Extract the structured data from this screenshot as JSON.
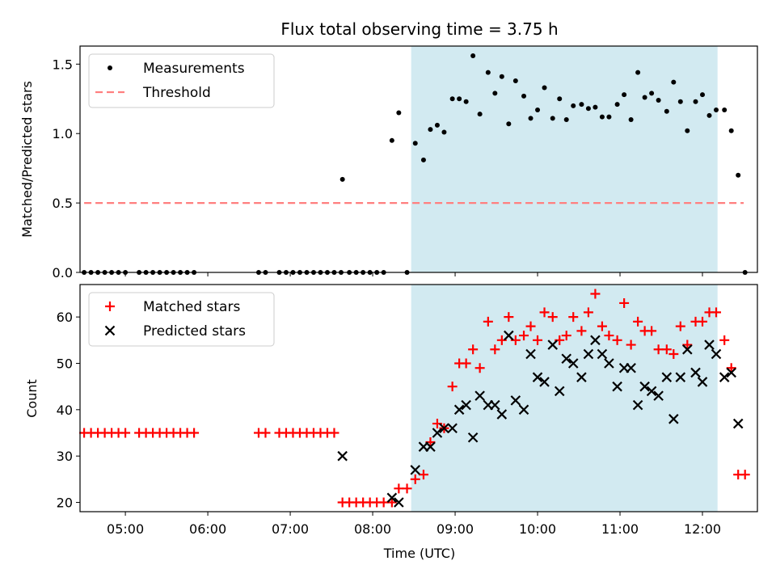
{
  "chart_data": [
    {
      "type": "scatter",
      "title": "Flux total observing time = 3.75 h",
      "ylabel": "Matched/Predicted stars",
      "xlabel": "",
      "xlim": [
        "04:27",
        "12:40"
      ],
      "ylim": [
        0,
        1.63
      ],
      "yticks": [
        "0.0",
        "0.5",
        "1.0",
        "1.5"
      ],
      "shaded_interval": [
        "08:28",
        "12:11"
      ],
      "shaded_color": "#add8e6",
      "legend": {
        "placement": "top-left",
        "entries": [
          "Measurements",
          "Threshold"
        ]
      },
      "series": [
        {
          "name": "Measurements",
          "color": "#000000",
          "marker": "dot",
          "points": [
            [
              "04:30",
              0
            ],
            [
              "04:35",
              0
            ],
            [
              "04:40",
              0
            ],
            [
              "04:45",
              0
            ],
            [
              "04:50",
              0
            ],
            [
              "04:55",
              0
            ],
            [
              "05:00",
              0
            ],
            [
              "05:10",
              0
            ],
            [
              "05:15",
              0
            ],
            [
              "05:20",
              0
            ],
            [
              "05:25",
              0
            ],
            [
              "05:30",
              0
            ],
            [
              "05:35",
              0
            ],
            [
              "05:40",
              0
            ],
            [
              "05:45",
              0
            ],
            [
              "05:50",
              0
            ],
            [
              "06:37",
              0
            ],
            [
              "06:42",
              0
            ],
            [
              "06:52",
              0
            ],
            [
              "06:57",
              0
            ],
            [
              "07:02",
              0
            ],
            [
              "07:07",
              0
            ],
            [
              "07:12",
              0
            ],
            [
              "07:17",
              0
            ],
            [
              "07:22",
              0
            ],
            [
              "07:27",
              0
            ],
            [
              "07:32",
              0
            ],
            [
              "07:37",
              0
            ],
            [
              "07:38",
              0.67
            ],
            [
              "07:43",
              0
            ],
            [
              "07:48",
              0
            ],
            [
              "07:53",
              0
            ],
            [
              "07:58",
              0
            ],
            [
              "08:03",
              0
            ],
            [
              "08:08",
              0
            ],
            [
              "08:14",
              0.95
            ],
            [
              "08:19",
              1.15
            ],
            [
              "08:25",
              0
            ],
            [
              "08:31",
              0.93
            ],
            [
              "08:37",
              0.81
            ],
            [
              "08:42",
              1.03
            ],
            [
              "08:47",
              1.06
            ],
            [
              "08:52",
              1.01
            ],
            [
              "08:58",
              1.25
            ],
            [
              "09:03",
              1.25
            ],
            [
              "09:08",
              1.23
            ],
            [
              "09:13",
              1.56
            ],
            [
              "09:18",
              1.14
            ],
            [
              "09:24",
              1.44
            ],
            [
              "09:29",
              1.29
            ],
            [
              "09:34",
              1.41
            ],
            [
              "09:39",
              1.07
            ],
            [
              "09:44",
              1.38
            ],
            [
              "09:50",
              1.27
            ],
            [
              "09:55",
              1.11
            ],
            [
              "10:00",
              1.17
            ],
            [
              "10:05",
              1.33
            ],
            [
              "10:11",
              1.11
            ],
            [
              "10:16",
              1.25
            ],
            [
              "10:21",
              1.1
            ],
            [
              "10:26",
              1.2
            ],
            [
              "10:32",
              1.21
            ],
            [
              "10:37",
              1.18
            ],
            [
              "10:42",
              1.19
            ],
            [
              "10:47",
              1.12
            ],
            [
              "10:52",
              1.12
            ],
            [
              "10:58",
              1.21
            ],
            [
              "11:03",
              1.28
            ],
            [
              "11:08",
              1.1
            ],
            [
              "11:13",
              1.44
            ],
            [
              "11:18",
              1.26
            ],
            [
              "11:23",
              1.29
            ],
            [
              "11:28",
              1.24
            ],
            [
              "11:34",
              1.16
            ],
            [
              "11:39",
              1.37
            ],
            [
              "11:44",
              1.23
            ],
            [
              "11:49",
              1.02
            ],
            [
              "11:55",
              1.23
            ],
            [
              "12:00",
              1.28
            ],
            [
              "12:05",
              1.13
            ],
            [
              "12:10",
              1.17
            ],
            [
              "12:16",
              1.17
            ],
            [
              "12:21",
              1.02
            ],
            [
              "12:26",
              0.7
            ],
            [
              "12:31",
              0
            ]
          ]
        },
        {
          "name": "Threshold",
          "color": "#ff7f7f",
          "style": "dashed",
          "points": [
            [
              "04:30",
              0.5
            ],
            [
              "12:30",
              0.5
            ]
          ]
        }
      ]
    },
    {
      "type": "scatter",
      "title": "",
      "ylabel": "Count",
      "xlabel": "Time (UTC)",
      "xlim": [
        "04:27",
        "12:40"
      ],
      "ylim": [
        18,
        67
      ],
      "yticks": [
        "20",
        "30",
        "40",
        "50",
        "60"
      ],
      "xticks": [
        "05:00",
        "06:00",
        "07:00",
        "08:00",
        "09:00",
        "10:00",
        "11:00",
        "12:00"
      ],
      "shaded_interval": [
        "08:28",
        "12:11"
      ],
      "shaded_color": "#add8e6",
      "legend": {
        "placement": "top-left",
        "entries": [
          "Matched stars",
          "Predicted stars"
        ]
      },
      "series": [
        {
          "name": "Matched stars",
          "color": "#ff0000",
          "marker": "plus",
          "points": [
            [
              "04:30",
              35
            ],
            [
              "04:35",
              35
            ],
            [
              "04:40",
              35
            ],
            [
              "04:45",
              35
            ],
            [
              "04:50",
              35
            ],
            [
              "04:55",
              35
            ],
            [
              "05:00",
              35
            ],
            [
              "05:10",
              35
            ],
            [
              "05:15",
              35
            ],
            [
              "05:20",
              35
            ],
            [
              "05:25",
              35
            ],
            [
              "05:30",
              35
            ],
            [
              "05:35",
              35
            ],
            [
              "05:40",
              35
            ],
            [
              "05:45",
              35
            ],
            [
              "05:50",
              35
            ],
            [
              "06:37",
              35
            ],
            [
              "06:42",
              35
            ],
            [
              "06:52",
              35
            ],
            [
              "06:57",
              35
            ],
            [
              "07:02",
              35
            ],
            [
              "07:07",
              35
            ],
            [
              "07:12",
              35
            ],
            [
              "07:17",
              35
            ],
            [
              "07:22",
              35
            ],
            [
              "07:27",
              35
            ],
            [
              "07:32",
              35
            ],
            [
              "07:38",
              20
            ],
            [
              "07:43",
              20
            ],
            [
              "07:48",
              20
            ],
            [
              "07:53",
              20
            ],
            [
              "07:58",
              20
            ],
            [
              "08:03",
              20
            ],
            [
              "08:08",
              20
            ],
            [
              "08:14",
              20
            ],
            [
              "08:19",
              23
            ],
            [
              "08:25",
              23
            ],
            [
              "08:31",
              25
            ],
            [
              "08:37",
              26
            ],
            [
              "08:42",
              33
            ],
            [
              "08:47",
              37
            ],
            [
              "08:52",
              36
            ],
            [
              "08:58",
              45
            ],
            [
              "09:03",
              50
            ],
            [
              "09:08",
              50
            ],
            [
              "09:13",
              53
            ],
            [
              "09:18",
              49
            ],
            [
              "09:24",
              59
            ],
            [
              "09:29",
              53
            ],
            [
              "09:34",
              55
            ],
            [
              "09:39",
              60
            ],
            [
              "09:44",
              55
            ],
            [
              "09:50",
              56
            ],
            [
              "09:55",
              58
            ],
            [
              "10:00",
              55
            ],
            [
              "10:05",
              61
            ],
            [
              "10:11",
              60
            ],
            [
              "10:16",
              55
            ],
            [
              "10:21",
              56
            ],
            [
              "10:26",
              60
            ],
            [
              "10:32",
              57
            ],
            [
              "10:37",
              61
            ],
            [
              "10:42",
              65
            ],
            [
              "10:47",
              58
            ],
            [
              "10:52",
              56
            ],
            [
              "10:58",
              55
            ],
            [
              "11:03",
              63
            ],
            [
              "11:08",
              54
            ],
            [
              "11:13",
              59
            ],
            [
              "11:18",
              57
            ],
            [
              "11:23",
              57
            ],
            [
              "11:28",
              53
            ],
            [
              "11:34",
              53
            ],
            [
              "11:39",
              52
            ],
            [
              "11:44",
              58
            ],
            [
              "11:49",
              54
            ],
            [
              "11:55",
              59
            ],
            [
              "12:00",
              59
            ],
            [
              "12:05",
              61
            ],
            [
              "12:10",
              61
            ],
            [
              "12:16",
              55
            ],
            [
              "12:21",
              49
            ],
            [
              "12:26",
              26
            ],
            [
              "12:31",
              26
            ]
          ]
        },
        {
          "name": "Predicted stars",
          "color": "#000000",
          "marker": "x",
          "points": [
            [
              "07:38",
              30
            ],
            [
              "08:14",
              21
            ],
            [
              "08:19",
              20
            ],
            [
              "08:31",
              27
            ],
            [
              "08:37",
              32
            ],
            [
              "08:42",
              32
            ],
            [
              "08:47",
              35
            ],
            [
              "08:52",
              36
            ],
            [
              "08:58",
              36
            ],
            [
              "09:03",
              40
            ],
            [
              "09:08",
              41
            ],
            [
              "09:13",
              34
            ],
            [
              "09:18",
              43
            ],
            [
              "09:24",
              41
            ],
            [
              "09:29",
              41
            ],
            [
              "09:34",
              39
            ],
            [
              "09:39",
              56
            ],
            [
              "09:44",
              42
            ],
            [
              "09:50",
              40
            ],
            [
              "09:55",
              52
            ],
            [
              "10:00",
              47
            ],
            [
              "10:05",
              46
            ],
            [
              "10:11",
              54
            ],
            [
              "10:16",
              44
            ],
            [
              "10:21",
              51
            ],
            [
              "10:26",
              50
            ],
            [
              "10:32",
              47
            ],
            [
              "10:37",
              52
            ],
            [
              "10:42",
              55
            ],
            [
              "10:47",
              52
            ],
            [
              "10:52",
              50
            ],
            [
              "10:58",
              45
            ],
            [
              "11:03",
              49
            ],
            [
              "11:08",
              49
            ],
            [
              "11:13",
              41
            ],
            [
              "11:18",
              45
            ],
            [
              "11:23",
              44
            ],
            [
              "11:28",
              43
            ],
            [
              "11:34",
              47
            ],
            [
              "11:39",
              38
            ],
            [
              "11:44",
              47
            ],
            [
              "11:49",
              53
            ],
            [
              "11:55",
              48
            ],
            [
              "12:00",
              46
            ],
            [
              "12:05",
              54
            ],
            [
              "12:10",
              52
            ],
            [
              "12:16",
              47
            ],
            [
              "12:21",
              48
            ],
            [
              "12:26",
              37
            ]
          ]
        }
      ]
    }
  ]
}
